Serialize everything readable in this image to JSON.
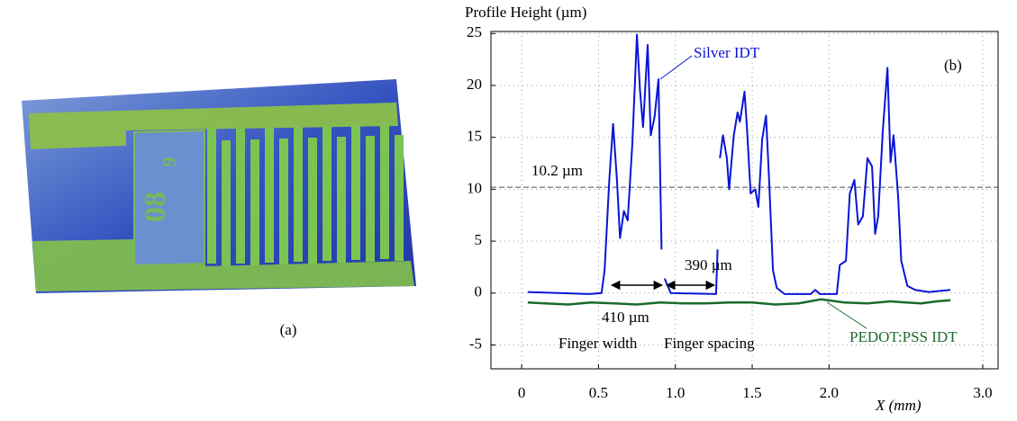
{
  "image_label": "(a)",
  "chart_data": {
    "type": "line",
    "title": "Profile Height (µm)",
    "x_label": "X (mm)",
    "panel_label": "(b)",
    "xlim": [
      -0.2,
      3.1
    ],
    "ylim": [
      -7.3,
      25.2
    ],
    "xticks": [
      0,
      0.5,
      {
        "value": 1,
        "label": "1.0"
      },
      1.5,
      {
        "value": 2,
        "label": "2.0"
      },
      {
        "value": 3,
        "label": "3.0"
      }
    ],
    "yticks": [
      -5,
      0,
      5,
      10,
      15,
      20,
      25
    ],
    "grid": true,
    "reference_line": {
      "value": 10.2,
      "label": "10.2 µm"
    },
    "annotations": {
      "silver": "Silver IDT",
      "pedot": "PEDOT:PSS IDT",
      "spacing_size": "390 µm",
      "width_size": "410 µm",
      "width": "Finger width",
      "spacing": "Finger spacing"
    },
    "series": [
      {
        "name": "Silver IDT",
        "color": "#0a14d8",
        "x": [
          0.04,
          0.44,
          0.52,
          0.54,
          0.57,
          0.595,
          0.62,
          0.64,
          0.665,
          0.69,
          0.72,
          0.75,
          0.77,
          0.79,
          0.82,
          0.84,
          0.865,
          0.89,
          0.91,
          0.92,
          0.93,
          0.97,
          1.265,
          1.275,
          1.28,
          1.29,
          1.31,
          1.335,
          1.35,
          1.38,
          1.405,
          1.42,
          1.45,
          1.465,
          1.49,
          1.52,
          1.54,
          1.565,
          1.59,
          1.61,
          1.635,
          1.66,
          1.71,
          1.88,
          1.91,
          1.94,
          2.05,
          2.07,
          2.11,
          2.135,
          2.165,
          2.19,
          2.22,
          2.25,
          2.28,
          2.3,
          2.32,
          2.35,
          2.38,
          2.4,
          2.42,
          2.45,
          2.47,
          2.51,
          2.56,
          2.65,
          2.79
        ],
        "values": [
          0.1,
          -0.1,
          0,
          2.2,
          10.9,
          16.3,
          10.9,
          5.3,
          7.9,
          7,
          14.4,
          24.9,
          19.5,
          16,
          23.9,
          15.2,
          17,
          20.6,
          4.2,
          null,
          1.4,
          0,
          -0.1,
          4.2,
          null,
          13,
          15.2,
          13,
          10,
          15.2,
          17.4,
          16.5,
          19.4,
          16.1,
          9.6,
          10,
          8.3,
          14.8,
          17.1,
          10.9,
          2.2,
          0.5,
          -0.1,
          -0.1,
          0.3,
          -0.1,
          -0.1,
          2.7,
          3.1,
          9.6,
          10.9,
          6.6,
          7.4,
          13,
          12.2,
          5.7,
          7.4,
          15.6,
          21.7,
          12.6,
          15.2,
          9.2,
          3.1,
          0.7,
          0.3,
          0.1,
          0.3
        ]
      },
      {
        "name": "PEDOT:PSS IDT",
        "color": "#1b6b2c",
        "x": [
          0.04,
          0.15,
          0.3,
          0.45,
          0.6,
          0.75,
          0.9,
          1.05,
          1.2,
          1.35,
          1.5,
          1.65,
          1.8,
          1.95,
          2.1,
          2.25,
          2.4,
          2.5,
          2.6,
          2.7,
          2.79
        ],
        "values": [
          -0.9,
          -1.0,
          -1.1,
          -0.9,
          -1.0,
          -1.1,
          -0.9,
          -1.0,
          -1.0,
          -0.9,
          -0.9,
          -1.1,
          -1.0,
          -0.6,
          -0.9,
          -1.0,
          -0.8,
          -0.9,
          -1.0,
          -0.8,
          -0.7
        ]
      }
    ]
  }
}
